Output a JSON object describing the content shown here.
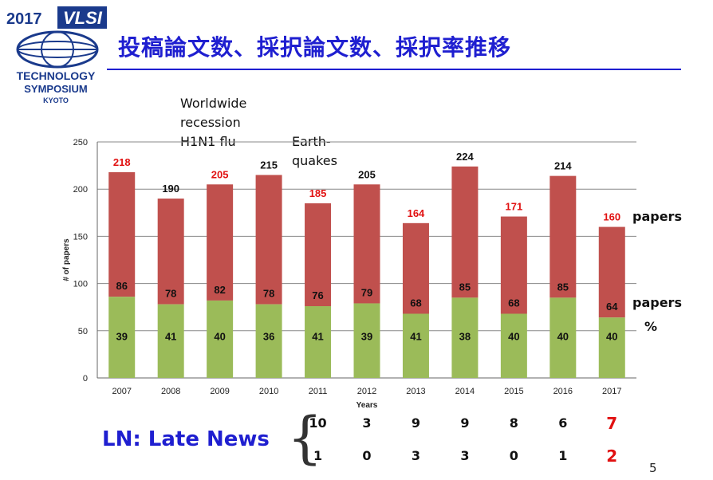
{
  "logo": {
    "year": "2017",
    "vlsi": "VLSI",
    "line1": "TECHNOLOGY",
    "line2": "SYMPOSIUM",
    "line3": "KYOTO"
  },
  "title": "投稿論文数、採択論文数、採択率推移",
  "annotations": {
    "recession_lines": [
      "Worldwide",
      "recession",
      "H1N1 flu"
    ],
    "earthquake_lines": [
      "Earth-",
      "quakes"
    ]
  },
  "right_labels": {
    "submitted": "papers",
    "accepted": "papers",
    "rate": "%"
  },
  "late_news": {
    "label": "LN: Late News",
    "row1": [
      "10",
      "3",
      "9",
      "9",
      "8",
      "6",
      "7"
    ],
    "row2": [
      "1",
      "0",
      "3",
      "3",
      "0",
      "1",
      "2"
    ],
    "highlight_color": "#e11111"
  },
  "page_number": "5",
  "colors": {
    "submitted_bar": "#c0504d",
    "accepted_bar": "#9bbb59",
    "highlight_text": "#e11111",
    "title_blue": "#1f1fd0"
  },
  "chart_data": {
    "type": "bar",
    "stacked": true,
    "xlabel": "Years",
    "ylabel": "# of papers",
    "ylim": [
      0,
      250
    ],
    "yticks": [
      0,
      50,
      100,
      150,
      200,
      250
    ],
    "grid": true,
    "categories": [
      "2007",
      "2008",
      "2009",
      "2010",
      "2011",
      "2012",
      "2013",
      "2014",
      "2015",
      "2016",
      "2017"
    ],
    "submitted_values": [
      218,
      190,
      205,
      215,
      185,
      205,
      164,
      224,
      171,
      214,
      160
    ],
    "submitted_label_highlight": [
      true,
      false,
      true,
      false,
      true,
      false,
      true,
      false,
      true,
      false,
      true
    ],
    "accepted_values": [
      86,
      78,
      82,
      78,
      76,
      79,
      68,
      85,
      68,
      85,
      64
    ],
    "acceptance_rate_percent": [
      39,
      41,
      40,
      36,
      41,
      39,
      41,
      38,
      40,
      40,
      40
    ]
  }
}
